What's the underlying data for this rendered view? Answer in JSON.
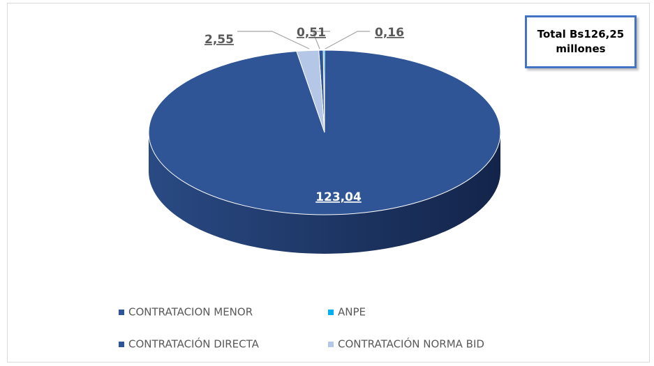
{
  "chart_data": {
    "type": "pie",
    "categories": [
      "CONTRATACION MENOR",
      "ANPE",
      "CONTRATACIÓN DIRECTA",
      "CONTRATACIÓN NORMA BID"
    ],
    "values": [
      123.04,
      0.16,
      0.51,
      2.55
    ],
    "value_labels": [
      "123,04",
      "0,16",
      "0,51",
      "2,55"
    ],
    "colors": [
      "#2f5597",
      "#00b0f0",
      "#2f5597",
      "#b4c7e7"
    ],
    "annotation": "Total Bs126,25 millones"
  }
}
